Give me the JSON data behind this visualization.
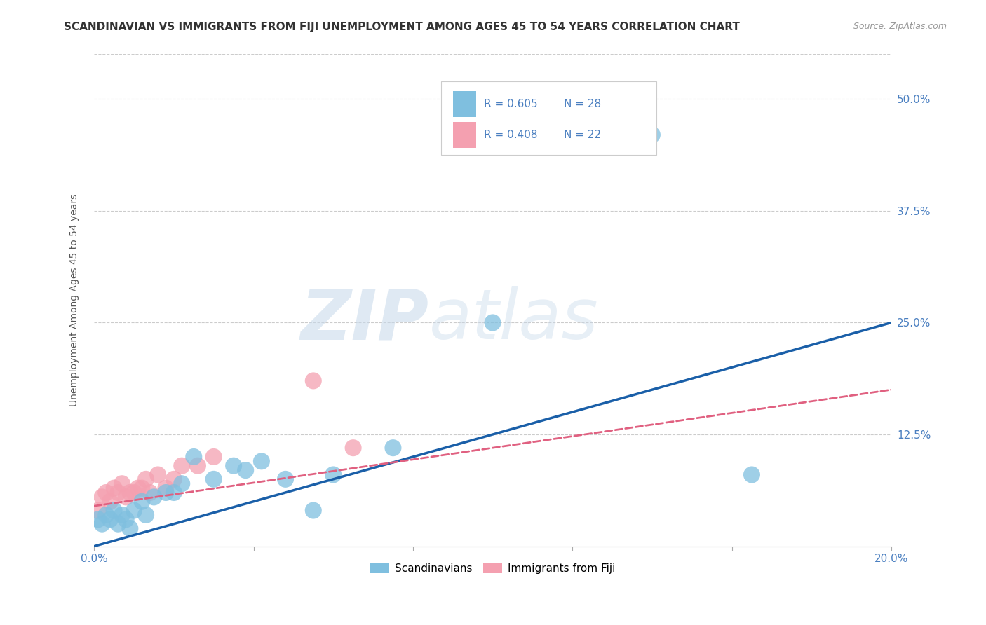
{
  "title": "SCANDINAVIAN VS IMMIGRANTS FROM FIJI UNEMPLOYMENT AMONG AGES 45 TO 54 YEARS CORRELATION CHART",
  "source": "Source: ZipAtlas.com",
  "ylabel": "Unemployment Among Ages 45 to 54 years",
  "xlim": [
    0.0,
    0.2
  ],
  "ylim": [
    0.0,
    0.55
  ],
  "xticks": [
    0.0,
    0.04,
    0.08,
    0.12,
    0.16,
    0.2
  ],
  "yticks": [
    0.0,
    0.125,
    0.25,
    0.375,
    0.5
  ],
  "scandinavian_color": "#7fbfdf",
  "fiji_color": "#f4a0b0",
  "blue_line_color": "#1a5fa8",
  "pink_line_color": "#e06080",
  "accent_color": "#4a7fc0",
  "R_scandinavian": 0.605,
  "N_scandinavian": 28,
  "R_fiji": 0.408,
  "N_fiji": 22,
  "scandinavian_x": [
    0.001,
    0.002,
    0.003,
    0.004,
    0.005,
    0.006,
    0.007,
    0.008,
    0.009,
    0.01,
    0.012,
    0.013,
    0.015,
    0.018,
    0.02,
    0.022,
    0.025,
    0.03,
    0.035,
    0.038,
    0.042,
    0.048,
    0.055,
    0.06,
    0.075,
    0.1,
    0.14,
    0.165
  ],
  "scandinavian_y": [
    0.03,
    0.025,
    0.035,
    0.03,
    0.04,
    0.025,
    0.035,
    0.03,
    0.02,
    0.04,
    0.05,
    0.035,
    0.055,
    0.06,
    0.06,
    0.07,
    0.1,
    0.075,
    0.09,
    0.085,
    0.095,
    0.075,
    0.04,
    0.08,
    0.11,
    0.25,
    0.46,
    0.08
  ],
  "fiji_x": [
    0.001,
    0.002,
    0.003,
    0.004,
    0.005,
    0.006,
    0.007,
    0.008,
    0.009,
    0.01,
    0.011,
    0.012,
    0.013,
    0.014,
    0.016,
    0.018,
    0.02,
    0.022,
    0.026,
    0.03,
    0.055,
    0.065
  ],
  "fiji_y": [
    0.04,
    0.055,
    0.06,
    0.05,
    0.065,
    0.06,
    0.07,
    0.055,
    0.06,
    0.06,
    0.065,
    0.065,
    0.075,
    0.06,
    0.08,
    0.065,
    0.075,
    0.09,
    0.09,
    0.1,
    0.185,
    0.11
  ],
  "blue_line_x0": 0.0,
  "blue_line_y0": 0.0,
  "blue_line_x1": 0.2,
  "blue_line_y1": 0.25,
  "pink_line_x0": 0.0,
  "pink_line_y0": 0.045,
  "pink_line_x1": 0.2,
  "pink_line_y1": 0.175,
  "watermark_zip": "ZIP",
  "watermark_atlas": "atlas",
  "background_color": "#ffffff",
  "grid_color": "#cccccc",
  "title_fontsize": 11,
  "source_fontsize": 9,
  "tick_fontsize": 11,
  "legend_fontsize": 11
}
